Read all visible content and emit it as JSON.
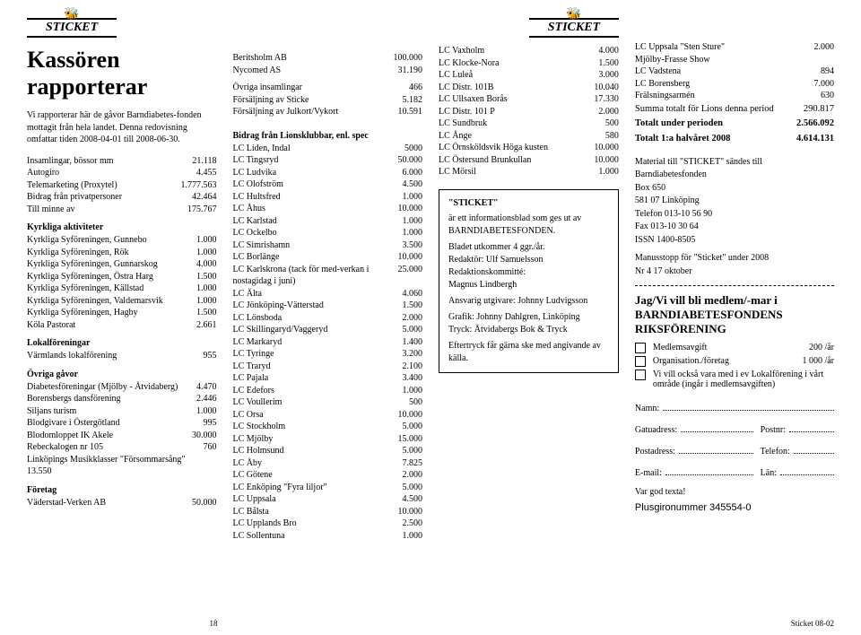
{
  "logo_text": "STICKET",
  "main_title": "Kassören rapporterar",
  "intro": "Vi rapporterar här de gåvor Barndiabetes-fonden mottagit från hela landet. Denna redovisning omfattar tiden 2008-04-01 till 2008-06-30.",
  "col1_top": [
    {
      "l": "Insamlingar, bössor mm",
      "v": "21.118"
    },
    {
      "l": "Autogiro",
      "v": "4.455"
    },
    {
      "l": "Telemarketing (Proxytel)",
      "v": "1.777.563"
    },
    {
      "l": "Bidrag från privatpersoner",
      "v": "42.464"
    },
    {
      "l": "Till minne av",
      "v": "175.767"
    }
  ],
  "sect_kyrk": "Kyrkliga aktiviteter",
  "kyrk": [
    {
      "l": "Kyrkliga Syföreningen, Gunnebo",
      "v": "1.000"
    },
    {
      "l": "Kyrkliga Syföreningen, Rök",
      "v": "1.000"
    },
    {
      "l": "Kyrkliga Syföreningen, Gunnarskog",
      "v": "4.000"
    },
    {
      "l": "Kyrkliga Syföreningen, Östra Harg",
      "v": "1.500"
    },
    {
      "l": "Kyrkliga Syföreningen, Källstad",
      "v": "1.000"
    },
    {
      "l": "Kyrkliga Syföreningen, Valdemarsvik",
      "v": "1.000"
    },
    {
      "l": "Kyrkliga Syföreningen, Hagby",
      "v": "1.500"
    },
    {
      "l": "Köla Pastorat",
      "v": "2.661"
    }
  ],
  "sect_lokal": "Lokalföreningar",
  "lokal": [
    {
      "l": "Värmlands lokalförening",
      "v": "955"
    }
  ],
  "sect_ovr": "Övriga gåvor",
  "ovr": [
    {
      "l": "Diabetesföreningar (Mjölby - Åtvidaberg)",
      "v": "4.470"
    },
    {
      "l": "Borensbergs dansförening",
      "v": "2.446"
    },
    {
      "l": "Siljans turism",
      "v": "1.000"
    },
    {
      "l": "Blodgivare i Östergötland",
      "v": "995"
    },
    {
      "l": "Blodomloppet IK Akele",
      "v": "30.000"
    },
    {
      "l": "Rebeckalogen nr 105",
      "v": "760"
    },
    {
      "l": "Linköpings Musikklasser \"Försommarsång\" 13.550",
      "v": ""
    }
  ],
  "sect_for": "Företag",
  "foretag": [
    {
      "l": "Väderstad-Verken AB",
      "v": "50.000"
    }
  ],
  "col2_top": [
    {
      "l": "Beritsholm AB",
      "v": "100.000"
    },
    {
      "l": "Nycomed AS",
      "v": "31.190"
    }
  ],
  "col2_mid": [
    {
      "l": "Övriga insamlingar",
      "v": "466"
    },
    {
      "l": "Försäljning av Sticke",
      "v": "5.182"
    },
    {
      "l": "Försäljning av Julkort/Vykort",
      "v": "10.591"
    }
  ],
  "sect_lions": "Bidrag från Lionsklubbar, enl. spec",
  "lions": [
    {
      "l": "LC Liden, Indal",
      "v": "5000"
    },
    {
      "l": "LC Tingsryd",
      "v": "50.000"
    },
    {
      "l": "LC Ludvika",
      "v": "6.000"
    },
    {
      "l": "LC Olofström",
      "v": "4.500"
    },
    {
      "l": "LC Hultsfred",
      "v": "1.000"
    },
    {
      "l": "LC Åhus",
      "v": "10.000"
    },
    {
      "l": "LC Karlstad",
      "v": "1.000"
    },
    {
      "l": "LC Ockelbo",
      "v": "1.000"
    },
    {
      "l": "LC Simrishamn",
      "v": "3.500"
    },
    {
      "l": "LC Borlänge",
      "v": "10.000"
    },
    {
      "l": "LC Karlskrona (tack för med-verkan i nostagidag i juni)",
      "v": "25.000"
    },
    {
      "l": "LC Älta",
      "v": "4.060"
    },
    {
      "l": "LC Jönköping-Vätterstad",
      "v": "1.500"
    },
    {
      "l": "LC Lönsboda",
      "v": "2.000"
    },
    {
      "l": "LC Skillingaryd/Vaggeryd",
      "v": "5.000"
    },
    {
      "l": "LC Markaryd",
      "v": "1.400"
    },
    {
      "l": "LC Tyringe",
      "v": "3.200"
    },
    {
      "l": "LC Traryd",
      "v": "2.100"
    },
    {
      "l": "LC Pajala",
      "v": "3.400"
    },
    {
      "l": "LC Edefors",
      "v": "1.000"
    },
    {
      "l": "LC Voullerim",
      "v": "500"
    },
    {
      "l": "LC Orsa",
      "v": "10.000"
    },
    {
      "l": "LC Stockholm",
      "v": "5.000"
    },
    {
      "l": "LC Mjölby",
      "v": "15.000"
    },
    {
      "l": "LC Holmsund",
      "v": "5.000"
    },
    {
      "l": "LC Åby",
      "v": "7.825"
    },
    {
      "l": "LC Götene",
      "v": "2.000"
    },
    {
      "l": "LC Enköping \"Fyra liljor\"",
      "v": "5.000"
    },
    {
      "l": "LC Uppsala",
      "v": "4.500"
    },
    {
      "l": "LC Bålsta",
      "v": "10.000"
    },
    {
      "l": "LC Upplands Bro",
      "v": "2.500"
    },
    {
      "l": "LC Sollentuna",
      "v": "1.000"
    }
  ],
  "lions2": [
    {
      "l": "LC Vaxholm",
      "v": "4.000"
    },
    {
      "l": "LC Klocke-Nora",
      "v": "1.500"
    },
    {
      "l": "LC Luleå",
      "v": "3.000"
    },
    {
      "l": "LC Distr. 101B",
      "v": "10.040"
    },
    {
      "l": "LC Ullsaxen Borås",
      "v": "17.330"
    },
    {
      "l": "LC Distr. 101 P",
      "v": "2.000"
    },
    {
      "l": "LC Sundbruk",
      "v": "500"
    },
    {
      "l": "LC Ånge",
      "v": "580"
    },
    {
      "l": "LC Örnsköldsvik Höga kusten",
      "v": "10.000"
    },
    {
      "l": "LC Östersund Brunkullan",
      "v": "10.000"
    },
    {
      "l": "LC Mörsil",
      "v": "1.000"
    }
  ],
  "box": {
    "title": "\"STICKET\"",
    "l1": "är ett informationsblad som ges ut av BARNDIABETESFONDEN.",
    "l2": "Bladet utkommer 4 ggr./år.",
    "l3": "Redaktör: Ulf Samuelsson",
    "l4": "Redaktionskommitté:",
    "l5": "Magnus Lindbergh",
    "l6": "Ansvarig utgivare: Johnny Ludvigsson",
    "l7": "Grafik: Johnny Dahlgren, Linköping",
    "l8": "Tryck: Åtvidabergs Bok & Tryck",
    "l9": "Eftertryck får gärna ske med angivande av källa."
  },
  "lions3": [
    {
      "l": "LC Uppsala \"Sten Sture\"",
      "v": "2.000"
    },
    {
      "l": "Mjölby-Frasse Show",
      "v": ""
    },
    {
      "l": "LC Vadstena",
      "v": "894"
    },
    {
      "l": "LC Borensberg",
      "v": "7.000"
    },
    {
      "l": "Frälsningsarmén",
      "v": "630"
    }
  ],
  "totals": [
    {
      "l": "Summa totalt för Lions denna period",
      "v": "290.817",
      "bold": false
    },
    {
      "l": "Totalt under perioden",
      "v": "2.566.092",
      "bold": true
    },
    {
      "l": "Totalt 1:a halvåret 2008",
      "v": "4.614.131",
      "bold": true
    }
  ],
  "material": {
    "l1": "Material till \"STICKET\" sändes till",
    "l2": "Barndiabetesfonden",
    "l3": "Box 650",
    "l4": "581 07 Linköping",
    "l5": "Telefon 013-10 56 90",
    "l6": "Fax 013-10 30 64",
    "l7": "ISSN 1400-8505",
    "l8": "Manusstopp för \"Sticket\" under 2008",
    "l9": "Nr 4 17 oktober"
  },
  "membership": {
    "title": "Jag/Vi vill bli medlem/-mar i BARNDIABETESFONDENS RIKSFÖRENING",
    "opt1": "Medlemsavgift",
    "amt1": "200 /år",
    "opt2": "Organisation./företag",
    "amt2": "1 000 /år",
    "opt3": "Vi vill också vara med i ev Lokalförening i vårt område (ingår i medlemsavgiften)",
    "f_namn": "Namn:",
    "f_gatu": "Gatuadress:",
    "f_postnr": "Postnr:",
    "f_post": "Postadress:",
    "f_tel": "Telefon:",
    "f_email": "E-mail:",
    "f_lan": "Län:",
    "vargod": "Var god texta!",
    "plusgiro": "Plusgironummer 345554-0"
  },
  "page_no": "18",
  "issue": "Sticket 08-02"
}
